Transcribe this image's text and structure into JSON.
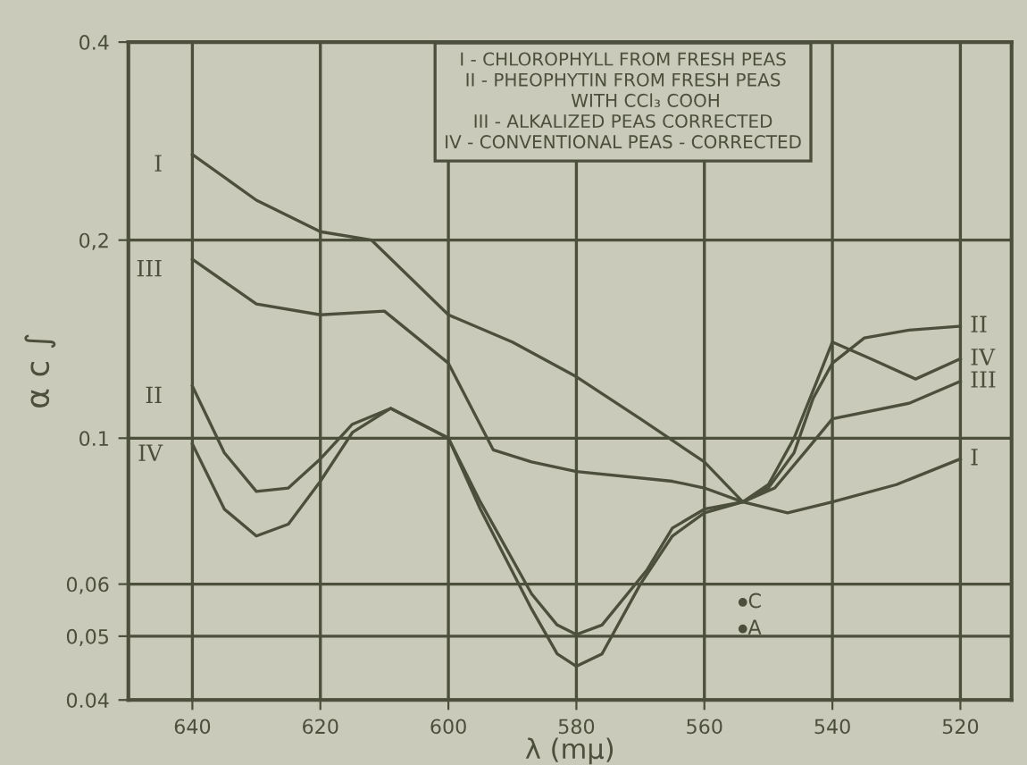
{
  "chart_data": {
    "type": "line",
    "xlabel": "λ (mμ)",
    "ylabel": "α c ∫",
    "log": "y",
    "grid": true,
    "marker": "none",
    "line_style": "solid",
    "xlim": [
      650,
      512
    ],
    "xticks": [
      640,
      620,
      600,
      580,
      560,
      540,
      520
    ],
    "ylim": [
      0.04,
      0.4
    ],
    "yticks": [
      {
        "value": 0.04,
        "label": "0.04"
      },
      {
        "value": 0.05,
        "label": "0,05"
      },
      {
        "value": 0.06,
        "label": "0,06"
      },
      {
        "value": 0.1,
        "label": "0.1"
      },
      {
        "value": 0.2,
        "label": "0,2"
      },
      {
        "value": 0.4,
        "label": "0.4"
      }
    ],
    "series": [
      {
        "name": "I",
        "color": "#4b4f3c",
        "x": [
          640,
          630,
          620,
          612,
          600,
          590,
          580,
          570,
          560,
          554,
          547,
          540,
          530,
          520
        ],
        "values": [
          0.27,
          0.23,
          0.206,
          0.2,
          0.154,
          0.14,
          0.124,
          0.107,
          0.092,
          0.08,
          0.077,
          0.08,
          0.085,
          0.093
        ]
      },
      {
        "name": "II",
        "color": "#4b4f3c",
        "x": [
          640,
          635,
          630,
          625,
          620,
          615,
          609,
          600,
          595,
          587,
          583,
          580,
          576,
          570,
          565,
          560,
          554,
          550,
          546,
          543,
          540,
          535,
          528,
          520
        ],
        "values": [
          0.12,
          0.095,
          0.083,
          0.084,
          0.093,
          0.105,
          0.111,
          0.1,
          0.078,
          0.055,
          0.047,
          0.045,
          0.047,
          0.06,
          0.071,
          0.077,
          0.08,
          0.084,
          0.095,
          0.115,
          0.13,
          0.142,
          0.146,
          0.148
        ]
      },
      {
        "name": "III",
        "color": "#4b4f3c",
        "x": [
          640,
          630,
          620,
          610,
          600,
          593,
          587,
          580,
          565,
          560,
          554,
          549,
          544,
          540,
          528,
          520
        ],
        "values": [
          0.187,
          0.16,
          0.154,
          0.156,
          0.13,
          0.096,
          0.092,
          0.089,
          0.086,
          0.084,
          0.08,
          0.084,
          0.096,
          0.107,
          0.113,
          0.122
        ]
      },
      {
        "name": "IV",
        "color": "#4b4f3c",
        "x": [
          640,
          635,
          630,
          625,
          620,
          615,
          609,
          600,
          595,
          587,
          583,
          580,
          576,
          569,
          565,
          560,
          554,
          550,
          546,
          542,
          540,
          534,
          527,
          520
        ],
        "values": [
          0.098,
          0.078,
          0.071,
          0.074,
          0.086,
          0.102,
          0.111,
          0.1,
          0.08,
          0.058,
          0.052,
          0.0503,
          0.052,
          0.063,
          0.073,
          0.078,
          0.08,
          0.085,
          0.1,
          0.125,
          0.14,
          0.132,
          0.123,
          0.132
        ]
      }
    ],
    "annotations": [
      "I - CHLOROPHYLL FROM FRESH PEAS",
      "II - PHEOPHYTIN FROM FRESH PEAS\n        WITH CCl₃ COOH",
      "III - ALKALIZED PEAS CORRECTED",
      "IV - CONVENTIONAL PEAS - CORRECTED",
      {
        "text": "C",
        "x": 554,
        "y": 0.0563
      },
      {
        "text": "A",
        "x": 554,
        "y": 0.0513
      }
    ]
  }
}
